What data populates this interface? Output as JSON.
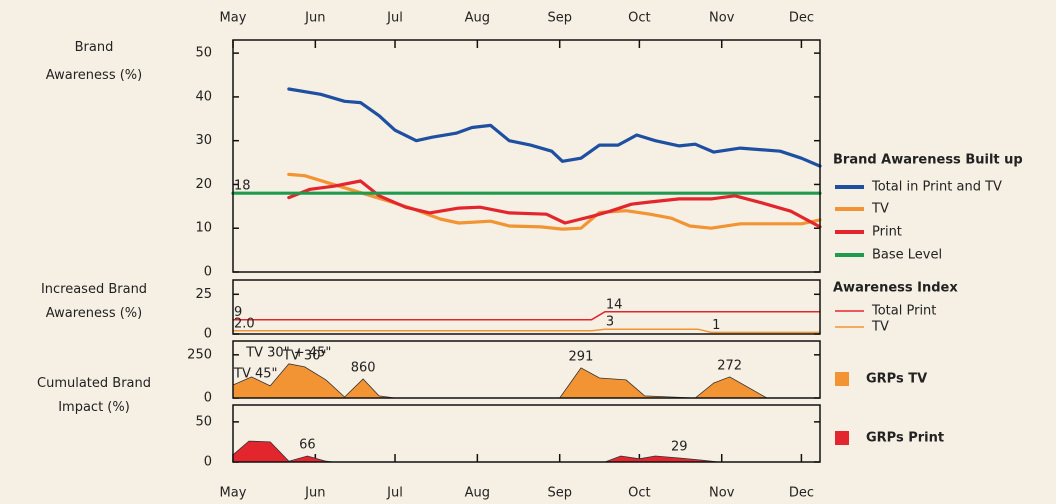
{
  "chart_data": [
    {
      "type": "line",
      "y_label": "Brand Awareness (%)",
      "legend_title": "Brand Awareness Built up",
      "xlim": [
        0,
        221
      ],
      "xticks": [
        {
          "value": 0,
          "label": "May"
        },
        {
          "value": 31,
          "label": "Jun"
        },
        {
          "value": 61,
          "label": "Jul"
        },
        {
          "value": 92,
          "label": "Aug"
        },
        {
          "value": 123,
          "label": "Sep"
        },
        {
          "value": 153,
          "label": "Oct"
        },
        {
          "value": 184,
          "label": "Nov"
        },
        {
          "value": 214,
          "label": "Dec"
        }
      ],
      "ylim": [
        0,
        53
      ],
      "yticks": [
        0,
        10,
        20,
        30,
        40,
        50
      ],
      "series": [
        {
          "name": "Total in Print and TV",
          "color": "#1f4fa0",
          "x": [
            21,
            33,
            42,
            48,
            55,
            61,
            69,
            75,
            84,
            90,
            97,
            104,
            112,
            120,
            124,
            131,
            138,
            145,
            152,
            159,
            168,
            174,
            181,
            191,
            206,
            214,
            221
          ],
          "values": [
            41.8,
            40.6,
            39,
            38.7,
            35.7,
            32.4,
            30,
            30.8,
            31.7,
            33,
            33.5,
            30,
            29,
            27.6,
            25.3,
            26,
            29,
            29,
            31.3,
            30,
            28.8,
            29.2,
            27.4,
            28.3,
            27.6,
            26,
            24.2
          ]
        },
        {
          "name": "TV",
          "color": "#f29433",
          "x": [
            21,
            27,
            40,
            52,
            67,
            78,
            85,
            97,
            104,
            116,
            124,
            131,
            138,
            148,
            157,
            165,
            172,
            180,
            191,
            214,
            221
          ],
          "values": [
            22.3,
            22,
            19.6,
            17.4,
            14.6,
            12.1,
            11.2,
            11.6,
            10.5,
            10.3,
            9.8,
            10,
            13.6,
            14,
            13.2,
            12.3,
            10.5,
            10,
            11,
            11,
            11.9
          ]
        },
        {
          "name": "Print",
          "color": "#e3262e",
          "x": [
            21,
            29,
            38,
            48,
            55,
            65,
            74,
            85,
            93,
            104,
            118,
            125,
            135,
            142,
            150,
            157,
            168,
            180,
            189,
            199,
            210,
            221
          ],
          "values": [
            17,
            18.9,
            19.6,
            20.8,
            17.4,
            14.8,
            13.5,
            14.6,
            14.8,
            13.5,
            13.2,
            11.2,
            12.7,
            13.9,
            15.5,
            16,
            16.7,
            16.7,
            17.4,
            15.8,
            13.9,
            10.3
          ]
        },
        {
          "name": "Base Level",
          "color": "#1f9a4f",
          "x": [
            0,
            221
          ],
          "values": [
            18,
            18
          ],
          "value_labels": [
            "18",
            null
          ]
        }
      ]
    },
    {
      "type": "line",
      "y_label": "Increased Brand Awareness (%)",
      "legend_title": "Awareness Index",
      "xlim": [
        0,
        221
      ],
      "ylim": [
        0,
        34
      ],
      "yticks": [
        0,
        25
      ],
      "series": [
        {
          "name": "Total Print",
          "color": "#e3262e",
          "x": [
            0,
            135,
            140,
            221
          ],
          "values": [
            9,
            9,
            14,
            14
          ],
          "value_labels": [
            "9",
            null,
            "14",
            null
          ]
        },
        {
          "name": "TV",
          "color": "#f29433",
          "x": [
            0,
            135,
            140,
            175,
            180,
            221
          ],
          "values": [
            2,
            2,
            3,
            3,
            1,
            1
          ],
          "value_labels": [
            "2.0",
            null,
            "3",
            null,
            "1",
            null
          ]
        }
      ]
    },
    {
      "type": "area",
      "y_label": "Cumulated Brand Impact (%)",
      "xlim": [
        0,
        221
      ],
      "ylim": [
        0,
        330
      ],
      "yticks": [
        0,
        250
      ],
      "series": [
        {
          "name": "GRPs TV",
          "color": "#f29433",
          "x": [
            0,
            7,
            14,
            21,
            27,
            35,
            42,
            49,
            55,
            61,
            123,
            131,
            138,
            148,
            155,
            174,
            181,
            187,
            201,
            221
          ],
          "values": [
            75,
            122,
            70,
            198,
            180,
            105,
            6,
            110,
            12,
            0,
            0,
            174,
            116,
            105,
            12,
            0,
            87,
            122,
            0,
            0
          ],
          "value_labels": [
            "TV 45\"",
            null,
            null,
            "TV 30\" + 45\"",
            "TV 30\"",
            null,
            null,
            "860",
            null,
            null,
            null,
            "291",
            null,
            null,
            null,
            null,
            null,
            "272",
            null,
            null
          ]
        }
      ]
    },
    {
      "type": "area",
      "xlim": [
        0,
        221
      ],
      "xticks": [
        {
          "value": 0,
          "label": "May"
        },
        {
          "value": 31,
          "label": "Jun"
        },
        {
          "value": 61,
          "label": "Jul"
        },
        {
          "value": 92,
          "label": "Aug"
        },
        {
          "value": 123,
          "label": "Sep"
        },
        {
          "value": 153,
          "label": "Oct"
        },
        {
          "value": 184,
          "label": "Nov"
        },
        {
          "value": 214,
          "label": "Dec"
        }
      ],
      "ylim": [
        0,
        71
      ],
      "yticks": [
        0,
        50
      ],
      "series": [
        {
          "name": "GRPs Print",
          "color": "#e3262e",
          "x": [
            0,
            6,
            14,
            21,
            28,
            35,
            38,
            140,
            146,
            153,
            159,
            168,
            176,
            183,
            221
          ],
          "values": [
            9,
            26,
            25,
            1,
            7.5,
            1,
            0,
            0,
            7.5,
            4,
            7.5,
            5,
            2.5,
            0,
            0
          ],
          "value_labels": [
            null,
            null,
            null,
            null,
            "66",
            null,
            null,
            null,
            null,
            null,
            null,
            "29",
            null,
            null,
            null
          ]
        }
      ]
    }
  ]
}
